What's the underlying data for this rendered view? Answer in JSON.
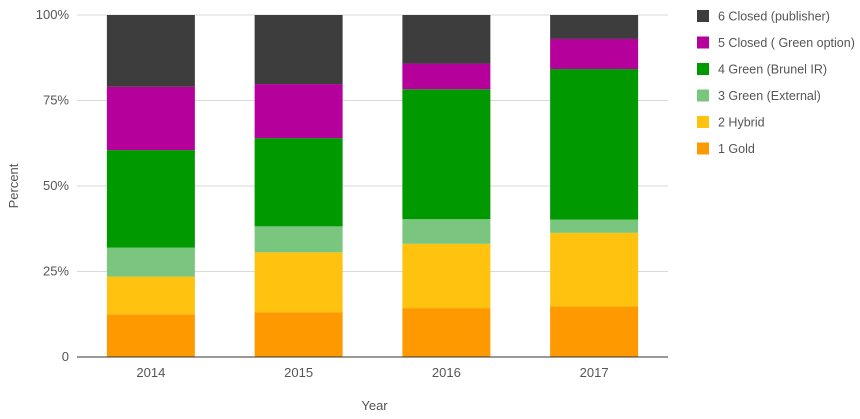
{
  "chart_data": {
    "type": "bar",
    "stacked": true,
    "xlabel": "Year",
    "ylabel": "Percent",
    "ylim": [
      0,
      100
    ],
    "y_ticks": [
      {
        "value": 0,
        "label": "0"
      },
      {
        "value": 25,
        "label": "25%"
      },
      {
        "value": 50,
        "label": "50%"
      },
      {
        "value": 75,
        "label": "75%"
      },
      {
        "value": 100,
        "label": "100%"
      }
    ],
    "categories": [
      "2014",
      "2015",
      "2016",
      "2017"
    ],
    "series": [
      {
        "name": "1 Gold",
        "color": "#ff9900",
        "values": [
          12.5,
          13.1,
          14.3,
          14.8
        ]
      },
      {
        "name": "2 Hybrid",
        "color": "#ffc20e",
        "values": [
          11.0,
          17.5,
          18.8,
          21.5
        ]
      },
      {
        "name": "3 Green (External)",
        "color": "#7bc67e",
        "values": [
          8.5,
          7.6,
          7.2,
          3.9
        ]
      },
      {
        "name": "4 Green (Brunel IR)",
        "color": "#009900",
        "values": [
          28.5,
          25.8,
          38.0,
          44.0
        ]
      },
      {
        "name": "5 Closed ( Green option)",
        "color": "#b5009c",
        "values": [
          18.5,
          15.8,
          7.5,
          8.8
        ]
      },
      {
        "name": "6 Closed (publisher)",
        "color": "#3d3d3d",
        "values": [
          21.0,
          20.2,
          14.2,
          7.0
        ]
      }
    ],
    "grid": true,
    "legend_position": "right"
  }
}
